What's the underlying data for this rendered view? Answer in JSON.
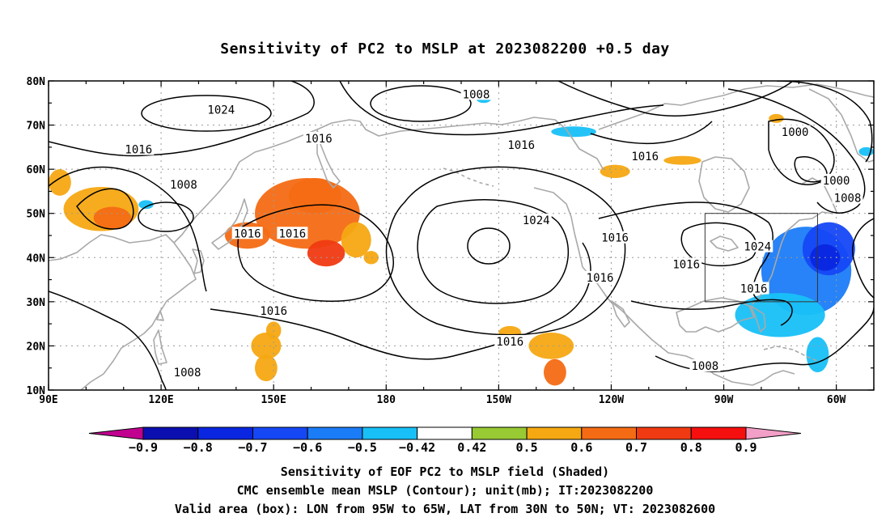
{
  "title": "Sensitivity of PC2 to MSLP at 2023082200 +0.5 day",
  "captions": [
    "Sensitivity of EOF PC2 to MSLP field (Shaded)",
    "CMC ensemble mean MSLP (Contour); unit(mb); IT:2023082200",
    "Valid area (box): LON from 95W to 65W, LAT from 30N to 50N; VT: 2023082600"
  ],
  "map": {
    "lon_range": [
      90,
      310
    ],
    "lat_range": [
      10,
      80
    ],
    "lat_labels": [
      "80N",
      "70N",
      "60N",
      "50N",
      "40N",
      "30N",
      "20N",
      "10N"
    ],
    "lon_labels": [
      "90E",
      "120E",
      "150E",
      "180",
      "150W",
      "120W",
      "90W",
      "60W"
    ],
    "valid_box": {
      "lon_min": 265,
      "lon_max": 295,
      "lat_min": 30,
      "lat_max": 50
    },
    "contour_labels": [
      {
        "text": "1008",
        "lon": 204,
        "lat": 77
      },
      {
        "text": "1024",
        "lon": 136,
        "lat": 73.5
      },
      {
        "text": "1016",
        "lon": 114,
        "lat": 64.5
      },
      {
        "text": "1016",
        "lon": 162,
        "lat": 67
      },
      {
        "text": "1016",
        "lon": 216,
        "lat": 65.5
      },
      {
        "text": "1016",
        "lon": 249,
        "lat": 63
      },
      {
        "text": "1000",
        "lon": 289,
        "lat": 68.5
      },
      {
        "text": "1000",
        "lon": 300,
        "lat": 57.5
      },
      {
        "text": "1008",
        "lon": 303,
        "lat": 53.5
      },
      {
        "text": "1008",
        "lon": 126,
        "lat": 56.5
      },
      {
        "text": "1024",
        "lon": 220,
        "lat": 48.5
      },
      {
        "text": "1016",
        "lon": 241,
        "lat": 44.5
      },
      {
        "text": "1016",
        "lon": 143,
        "lat": 45.5
      },
      {
        "text": "1016",
        "lon": 155,
        "lat": 45.5
      },
      {
        "text": "1024",
        "lon": 279,
        "lat": 42.5
      },
      {
        "text": "1016",
        "lon": 260,
        "lat": 38.5
      },
      {
        "text": "1016",
        "lon": 237,
        "lat": 35.5
      },
      {
        "text": "1016",
        "lon": 278,
        "lat": 33
      },
      {
        "text": "1016",
        "lon": 150,
        "lat": 28
      },
      {
        "text": "1016",
        "lon": 213,
        "lat": 21
      },
      {
        "text": "1008",
        "lon": 127,
        "lat": 14
      },
      {
        "text": "1008",
        "lon": 265,
        "lat": 15.5
      }
    ]
  },
  "colorbar": {
    "levels": [
      -0.9,
      -0.8,
      -0.7,
      -0.6,
      -0.5,
      -0.42,
      0.42,
      0.5,
      0.6,
      0.7,
      0.8,
      0.9
    ],
    "labels": [
      "−0.9",
      "−0.8",
      "−0.7",
      "−0.6",
      "−0.5",
      "−0.42",
      "0.42",
      "0.5",
      "0.6",
      "0.7",
      "0.8",
      "0.9"
    ],
    "colors": [
      "#c1008f",
      "#0b0fb0",
      "#0a26e0",
      "#1547f5",
      "#1b7cf7",
      "#18c0f7",
      "#ffffff",
      "#97ca33",
      "#f5a812",
      "#f46b14",
      "#f03a12",
      "#f50f0f",
      "#f2a0c8"
    ]
  },
  "shading": [
    {
      "value": 0.55,
      "lon": 104,
      "lat": 51,
      "rx": 10,
      "ry": 5
    },
    {
      "value": 0.65,
      "lon": 107,
      "lat": 49,
      "rx": 5,
      "ry": 2.5
    },
    {
      "value": 0.5,
      "lon": 93,
      "lat": 57,
      "rx": 3,
      "ry": 3
    },
    {
      "value": 0.6,
      "lon": 159,
      "lat": 50,
      "rx": 14,
      "ry": 8
    },
    {
      "value": 0.65,
      "lon": 161,
      "lat": 54,
      "rx": 7,
      "ry": 4
    },
    {
      "value": 0.6,
      "lon": 143,
      "lat": 45,
      "rx": 6,
      "ry": 3
    },
    {
      "value": 0.55,
      "lon": 172,
      "lat": 44,
      "rx": 4,
      "ry": 4
    },
    {
      "value": 0.75,
      "lon": 164,
      "lat": 41,
      "rx": 5,
      "ry": 3
    },
    {
      "value": 0.5,
      "lon": 176,
      "lat": 40,
      "rx": 2,
      "ry": 1.5
    },
    {
      "value": 0.5,
      "lon": 148,
      "lat": 20,
      "rx": 4,
      "ry": 3
    },
    {
      "value": 0.5,
      "lon": 150,
      "lat": 23.5,
      "rx": 2,
      "ry": 2
    },
    {
      "value": 0.5,
      "lon": 148,
      "lat": 15,
      "rx": 3,
      "ry": 3
    },
    {
      "value": 0.5,
      "lon": 224,
      "lat": 20,
      "rx": 6,
      "ry": 3
    },
    {
      "value": 0.5,
      "lon": 213,
      "lat": 23,
      "rx": 3,
      "ry": 1.5
    },
    {
      "value": 0.6,
      "lon": 225,
      "lat": 14,
      "rx": 3,
      "ry": 3
    },
    {
      "value": 0.5,
      "lon": 241,
      "lat": 59.5,
      "rx": 4,
      "ry": 1.5
    },
    {
      "value": 0.55,
      "lon": 259,
      "lat": 62,
      "rx": 5,
      "ry": 1
    },
    {
      "value": 0.5,
      "lon": 284,
      "lat": 71.5,
      "rx": 2,
      "ry": 1
    },
    {
      "value": -0.55,
      "lon": 292,
      "lat": 37,
      "rx": 12,
      "ry": 10
    },
    {
      "value": -0.7,
      "lon": 298,
      "lat": 42,
      "rx": 7,
      "ry": 6
    },
    {
      "value": -0.8,
      "lon": 297,
      "lat": 40,
      "rx": 4,
      "ry": 3
    },
    {
      "value": -0.5,
      "lon": 285,
      "lat": 27,
      "rx": 12,
      "ry": 5
    },
    {
      "value": -0.5,
      "lon": 295,
      "lat": 18,
      "rx": 3,
      "ry": 4
    },
    {
      "value": -0.45,
      "lon": 206,
      "lat": 76,
      "rx": 2,
      "ry": 1
    },
    {
      "value": -0.45,
      "lon": 230,
      "lat": 68.5,
      "rx": 6,
      "ry": 1.2
    },
    {
      "value": -0.45,
      "lon": 308,
      "lat": 64,
      "rx": 2,
      "ry": 1
    },
    {
      "value": -0.45,
      "lon": 116,
      "lat": 52,
      "rx": 2,
      "ry": 1
    }
  ]
}
